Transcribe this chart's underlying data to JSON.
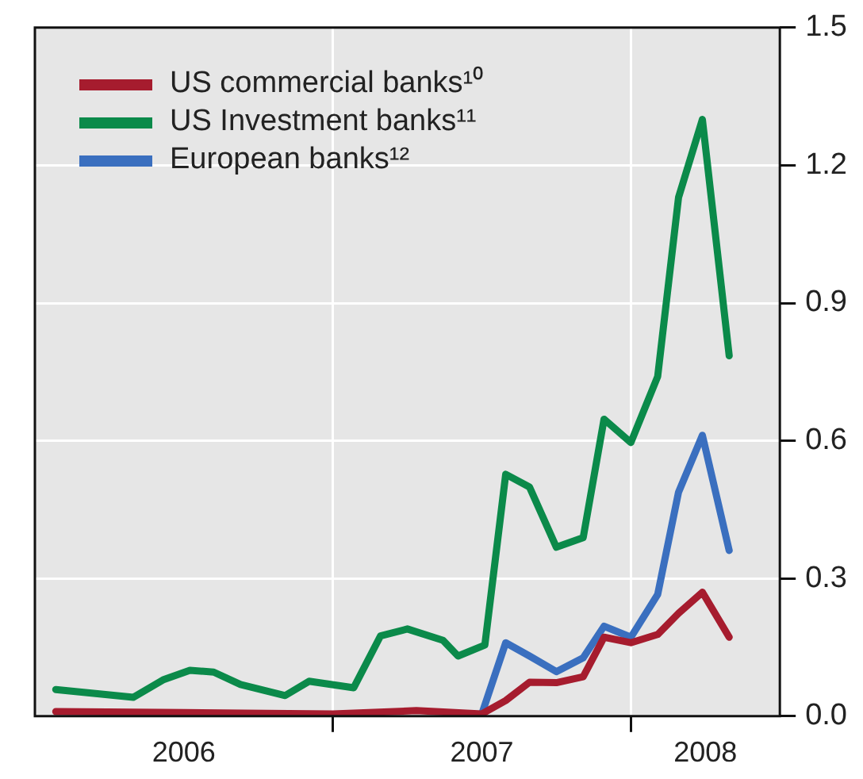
{
  "chart_data": {
    "type": "line",
    "legend": "top left",
    "grid": true,
    "marker": "none",
    "line_style": "solid",
    "xlim": [
      2006,
      2008.5
    ],
    "ylim": [
      0,
      1.5
    ],
    "xticks": [
      {
        "value": 2006.5,
        "label": "2006"
      },
      {
        "value": 2007,
        "label": null
      },
      {
        "value": 2007.5,
        "label": "2007"
      },
      {
        "value": 2008,
        "label": null
      },
      {
        "value": 2008.25,
        "label": "2008"
      }
    ],
    "yticks": [
      {
        "value": 0,
        "label": "0.0"
      },
      0.3,
      0.6,
      0.9,
      1.2,
      1.5
    ],
    "series": [
      {
        "name": "US commercial banks¹⁰",
        "color": "#a61c2e",
        "x": [
          2006.07,
          2006.5,
          2007,
          2007.28,
          2007.5,
          2007.58,
          2007.66,
          2007.75,
          2007.84,
          2007.91,
          2008,
          2008.09,
          2008.16,
          2008.24,
          2008.33
        ],
        "values": [
          0.01,
          0.008,
          0.005,
          0.012,
          0.005,
          0.034,
          0.074,
          0.073,
          0.086,
          0.172,
          0.16,
          0.178,
          0.224,
          0.27,
          0.172
        ]
      },
      {
        "name": "US Investment banks¹¹",
        "color": "#0b8a4a",
        "x": [
          2006.07,
          2006.33,
          2006.43,
          2006.52,
          2006.6,
          2006.69,
          2006.84,
          2006.92,
          2007.07,
          2007.16,
          2007.25,
          2007.37,
          2007.42,
          2007.51,
          2007.58,
          2007.66,
          2007.75,
          2007.84,
          2007.91,
          2008,
          2008.09,
          2008.16,
          2008.24,
          2008.33
        ],
        "values": [
          0.058,
          0.041,
          0.079,
          0.1,
          0.096,
          0.069,
          0.045,
          0.076,
          0.062,
          0.175,
          0.19,
          0.165,
          0.131,
          0.155,
          0.527,
          0.499,
          0.368,
          0.389,
          0.647,
          0.596,
          0.74,
          1.13,
          1.3,
          0.785
        ]
      },
      {
        "name": "European banks¹²",
        "color": "#3a6fbf",
        "x": [
          2007.5,
          2007.58,
          2007.66,
          2007.75,
          2007.84,
          2007.91,
          2008,
          2008.09,
          2008.16,
          2008.24,
          2008.33
        ],
        "values": [
          0.005,
          0.16,
          0.131,
          0.097,
          0.127,
          0.196,
          0.172,
          0.265,
          0.488,
          0.612,
          0.361
        ]
      }
    ]
  }
}
